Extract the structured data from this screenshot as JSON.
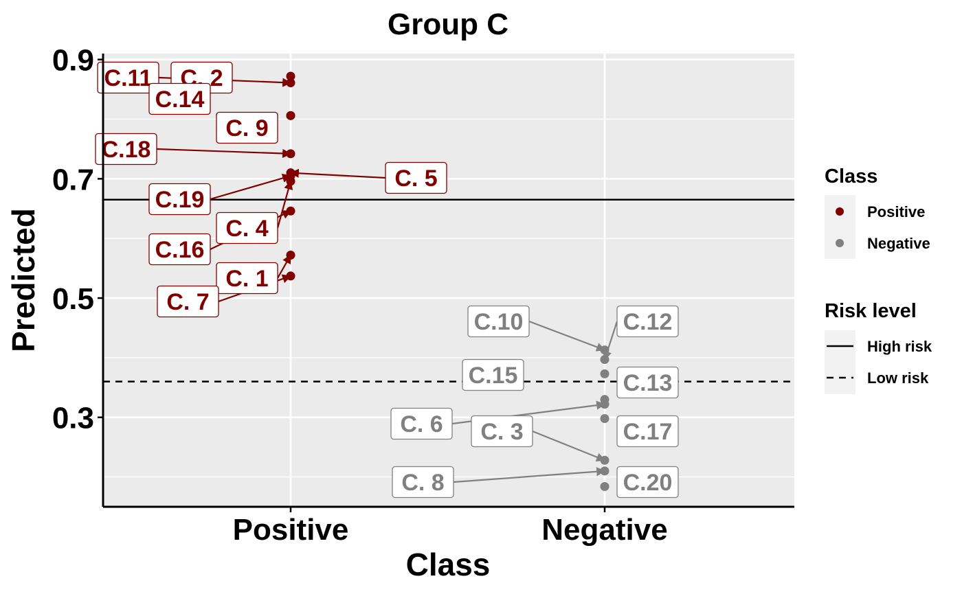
{
  "chart_data": {
    "type": "scatter",
    "title": "Group C",
    "xlabel": "Class",
    "ylabel": "Predicted",
    "categories": [
      "Positive",
      "Negative"
    ],
    "ylim": [
      0.15,
      0.91
    ],
    "yticks": [
      0.3,
      0.5,
      0.7,
      0.9
    ],
    "grid": true,
    "legend_placement": "right",
    "colors": {
      "Positive": "#800000",
      "Negative": "#808080",
      "panel": "#ebebeb",
      "grid": "#ffffff"
    },
    "reference_lines": [
      {
        "name": "High risk",
        "y": 0.665,
        "style": "solid"
      },
      {
        "name": "Low risk",
        "y": 0.36,
        "style": "dashed"
      }
    ],
    "legend": {
      "class_title": "Class",
      "class_items": [
        "Positive",
        "Negative"
      ],
      "risk_title": "Risk level",
      "risk_items": [
        "High risk",
        "Low risk"
      ]
    },
    "series": [
      {
        "name": "Positive",
        "points": [
          {
            "label": "C. 2",
            "x": "Positive",
            "y": 0.872
          },
          {
            "label": "C.11",
            "x": "Positive",
            "y": 0.861
          },
          {
            "label": "C.14",
            "x": "Positive",
            "y": 0.806
          },
          {
            "label": "C. 9",
            "x": "Positive",
            "y": 0.806
          },
          {
            "label": "C.18",
            "x": "Positive",
            "y": 0.742
          },
          {
            "label": "C. 5",
            "x": "Positive",
            "y": 0.71
          },
          {
            "label": "C.19",
            "x": "Positive",
            "y": 0.705
          },
          {
            "label": "C. 4",
            "x": "Positive",
            "y": 0.696
          },
          {
            "label": "C.16",
            "x": "Positive",
            "y": 0.646
          },
          {
            "label": "C. 1",
            "x": "Positive",
            "y": 0.572
          },
          {
            "label": "C. 7",
            "x": "Positive",
            "y": 0.537
          }
        ]
      },
      {
        "name": "Negative",
        "points": [
          {
            "label": "C.10",
            "x": "Negative",
            "y": 0.413
          },
          {
            "label": "C.12",
            "x": "Negative",
            "y": 0.397
          },
          {
            "label": "C.15",
            "x": "Negative",
            "y": 0.373
          },
          {
            "label": "C.13",
            "x": "Negative",
            "y": 0.33
          },
          {
            "label": "C. 6",
            "x": "Negative",
            "y": 0.322
          },
          {
            "label": "C.17",
            "x": "Negative",
            "y": 0.298
          },
          {
            "label": "C. 3",
            "x": "Negative",
            "y": 0.228
          },
          {
            "label": "C. 8",
            "x": "Negative",
            "y": 0.21
          },
          {
            "label": "C.20",
            "x": "Negative",
            "y": 0.184
          }
        ]
      }
    ]
  }
}
